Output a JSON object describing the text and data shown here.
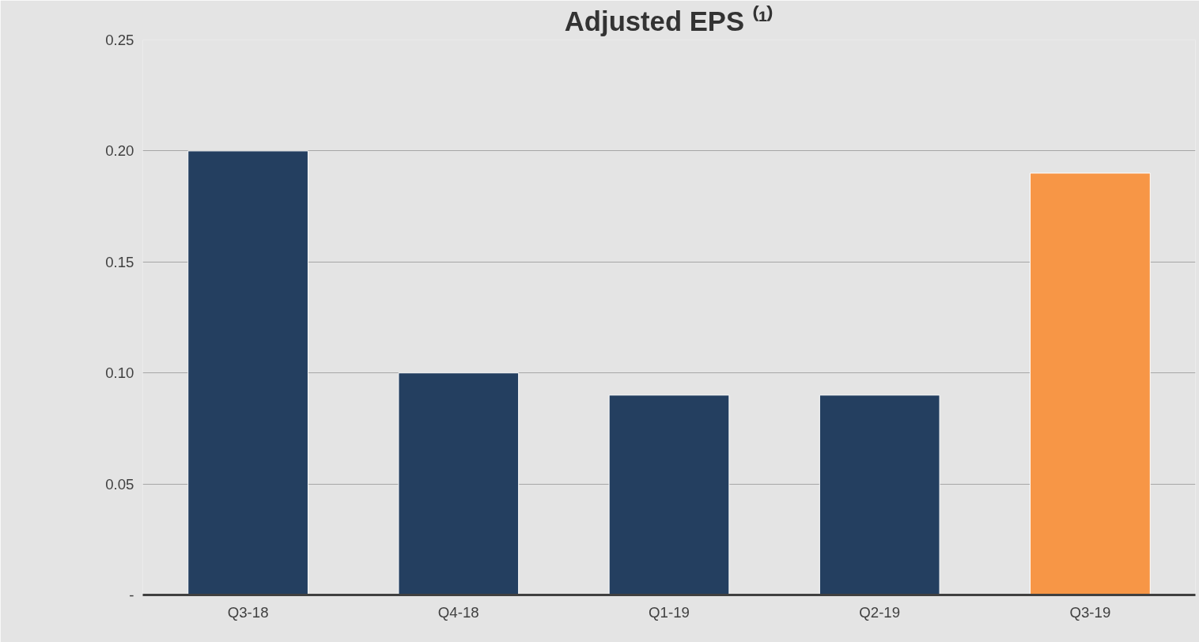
{
  "chart_data": {
    "type": "bar",
    "title": "Adjusted EPS ⁽¹⁾",
    "categories": [
      "Q3-18",
      "Q4-18",
      "Q1-19",
      "Q2-19",
      "Q3-19"
    ],
    "values": [
      0.2,
      0.1,
      0.09,
      0.09,
      0.19
    ],
    "colors": [
      "#243f60",
      "#243f60",
      "#243f60",
      "#243f60",
      "#f79646"
    ],
    "ylim": [
      0,
      0.25
    ],
    "yticks": [
      {
        "value": 0,
        "label": "-"
      },
      {
        "value": 0.05,
        "label": "0.05"
      },
      {
        "value": 0.1,
        "label": "0.10"
      },
      {
        "value": 0.15,
        "label": "0.15"
      },
      {
        "value": 0.2,
        "label": "0.20"
      },
      {
        "value": 0.25,
        "label": "0.25"
      }
    ],
    "grid": "y"
  }
}
